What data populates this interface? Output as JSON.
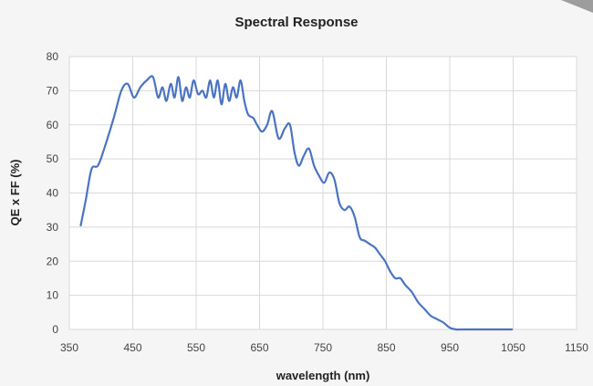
{
  "chart_data": {
    "type": "line",
    "title": "Spectral Response",
    "xlabel": "wavelength (nm)",
    "ylabel": "QE x FF (%)",
    "xlim": [
      350,
      1150
    ],
    "ylim": [
      0,
      80
    ],
    "xticks": [
      350,
      450,
      550,
      650,
      750,
      850,
      950,
      1050,
      1150
    ],
    "yticks": [
      0,
      10,
      20,
      30,
      40,
      50,
      60,
      70,
      80
    ],
    "grid": true,
    "series": [
      {
        "color": "#4a74c2",
        "x": [
          368,
          376,
          385,
          395,
          405,
          420,
          432,
          442,
          452,
          462,
          472,
          482,
          490,
          497,
          503,
          510,
          516,
          522,
          528,
          534,
          540,
          546,
          553,
          560,
          566,
          572,
          578,
          584,
          590,
          596,
          602,
          608,
          614,
          620,
          626,
          632,
          640,
          646,
          654,
          662,
          670,
          680,
          690,
          698,
          705,
          712,
          720,
          728,
          736,
          744,
          752,
          760,
          768,
          776,
          784,
          792,
          800,
          808,
          816,
          824,
          832,
          840,
          848,
          856,
          864,
          872,
          880,
          890,
          900,
          910,
          920,
          930,
          940,
          950,
          960,
          970,
          980,
          990,
          1000,
          1010,
          1020,
          1030,
          1040,
          1048
        ],
        "y": [
          30.5,
          38,
          47,
          48,
          53,
          62,
          70,
          72,
          68,
          71,
          73,
          74,
          68,
          71,
          67,
          72,
          68,
          74,
          67,
          71,
          68,
          73,
          69,
          70,
          68,
          73,
          68,
          73,
          66,
          72,
          67,
          71,
          68,
          73,
          67,
          63,
          62,
          60,
          58,
          60,
          64,
          56,
          59,
          60,
          52,
          48,
          51,
          53,
          48,
          45,
          43,
          46,
          44,
          37,
          35,
          36,
          33,
          27,
          26,
          25,
          24,
          22,
          20,
          17,
          15,
          15,
          13,
          11,
          8,
          6,
          4,
          3,
          2,
          0.5,
          0,
          0,
          0,
          0,
          0,
          0,
          0,
          0,
          0,
          0
        ]
      }
    ]
  }
}
